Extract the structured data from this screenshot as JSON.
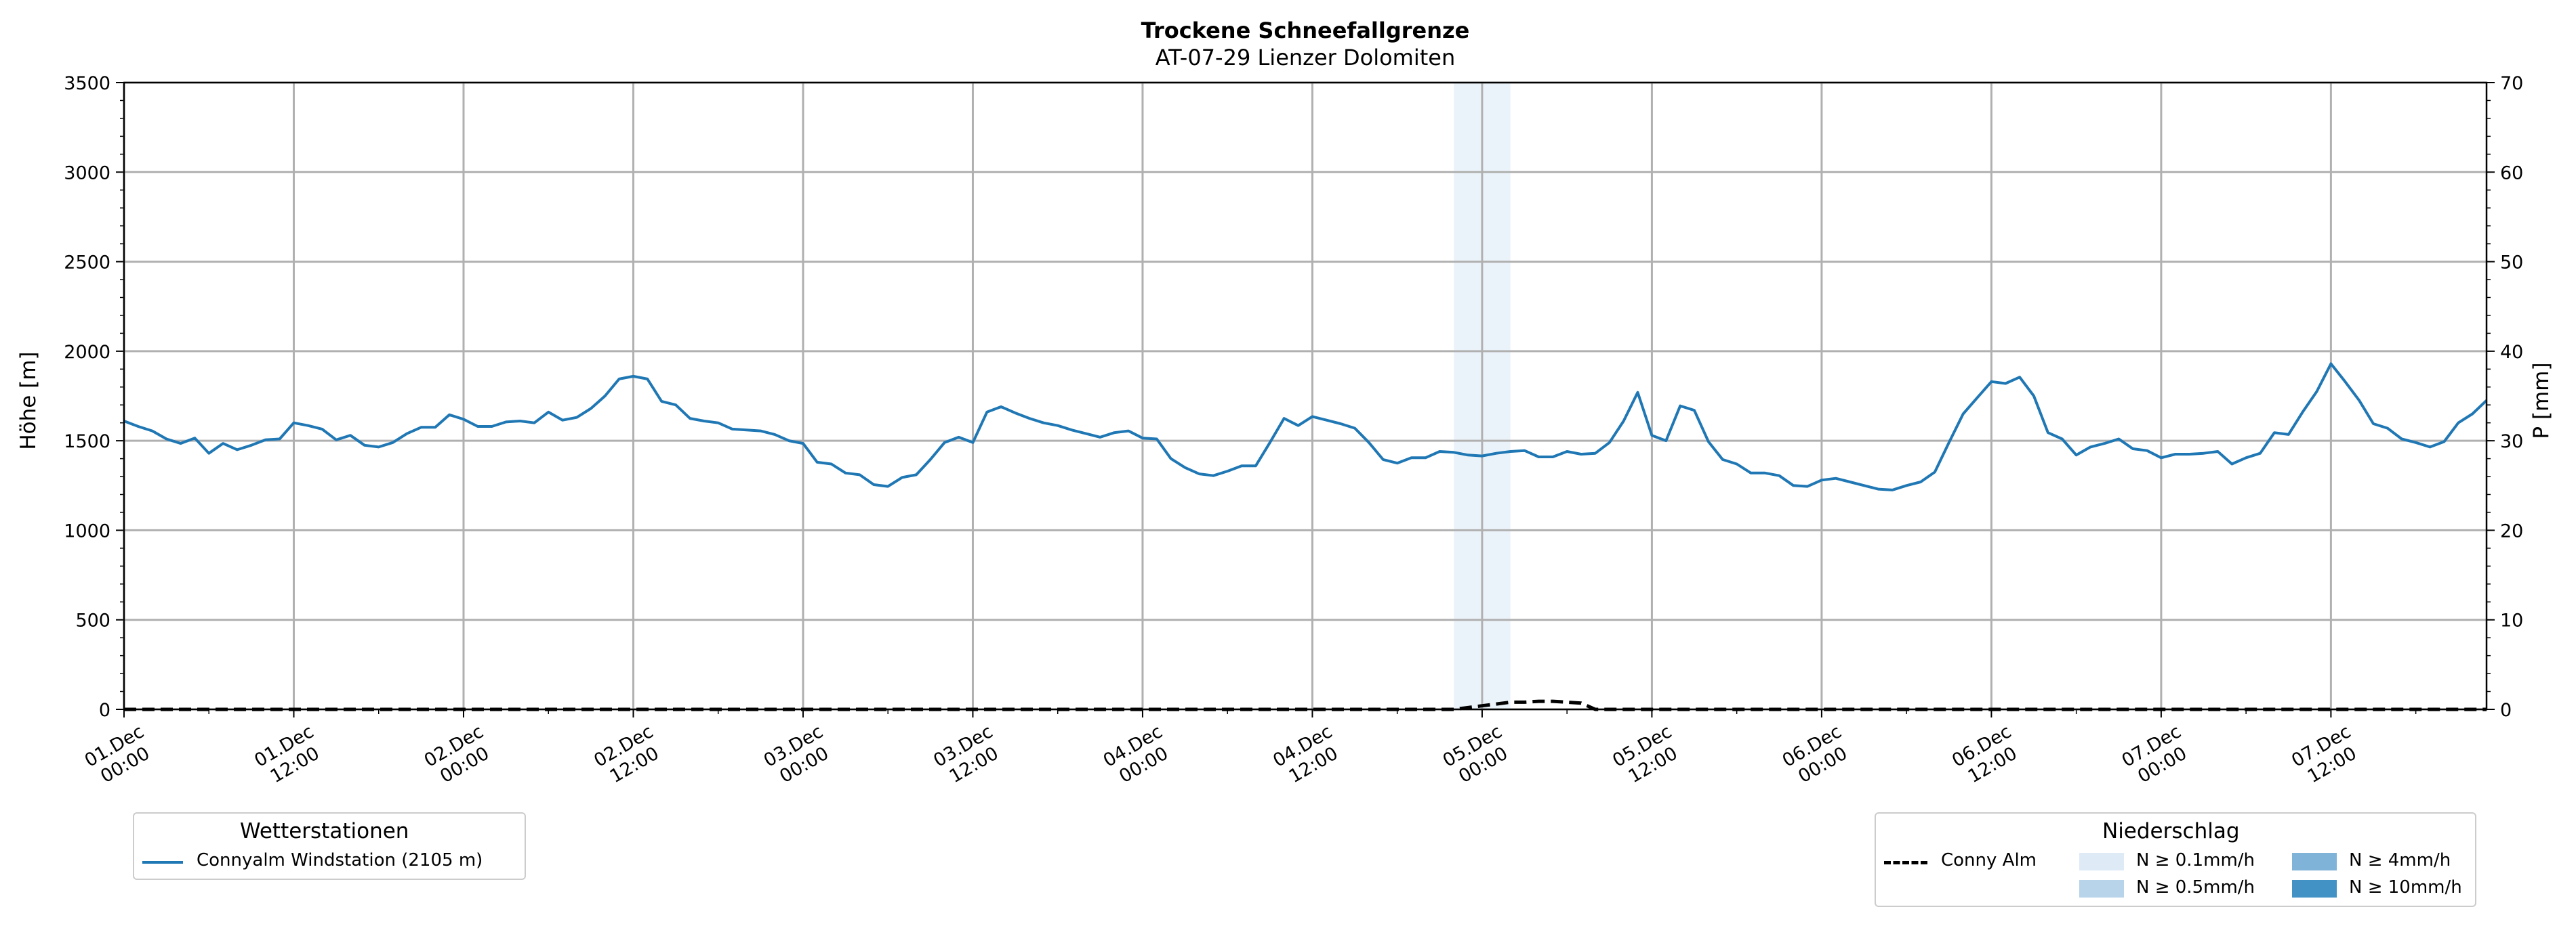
{
  "chart_data": {
    "type": "line",
    "title": "Trockene Schneefallgrenze",
    "subtitle": "AT-07-29 Lienzer Dolomiten",
    "ylabel": "Höhe [m]",
    "y2label": "P [mm]",
    "ylim": [
      0,
      3500
    ],
    "y2lim": [
      0,
      70
    ],
    "yticks": [
      "0",
      "500",
      "1000",
      "1500",
      "2000",
      "2500",
      "3000",
      "3500"
    ],
    "y2ticks": [
      "0",
      "10",
      "20",
      "30",
      "40",
      "50",
      "60",
      "70"
    ],
    "xlim_hours": [
      0,
      167
    ],
    "xtick_labels": [
      [
        "01.Dec",
        "00:00"
      ],
      [
        "01.Dec",
        "12:00"
      ],
      [
        "02.Dec",
        "00:00"
      ],
      [
        "02.Dec",
        "12:00"
      ],
      [
        "03.Dec",
        "00:00"
      ],
      [
        "03.Dec",
        "12:00"
      ],
      [
        "04.Dec",
        "00:00"
      ],
      [
        "04.Dec",
        "12:00"
      ],
      [
        "05.Dec",
        "00:00"
      ],
      [
        "05.Dec",
        "12:00"
      ],
      [
        "06.Dec",
        "00:00"
      ],
      [
        "06.Dec",
        "12:00"
      ],
      [
        "07.Dec",
        "00:00"
      ],
      [
        "07.Dec",
        "12:00"
      ]
    ],
    "grid": true,
    "series": [
      {
        "name": "Connyalm Windstation (2105 m)",
        "color": "#1f77b4",
        "axis": "left",
        "x_hours": [
          0,
          1,
          2,
          3,
          4,
          5,
          6,
          7,
          8,
          9,
          10,
          11,
          12,
          13,
          14,
          15,
          16,
          17,
          18,
          19,
          20,
          21,
          22,
          23,
          24,
          25,
          26,
          27,
          28,
          29,
          30,
          31,
          32,
          33,
          34,
          35,
          36,
          37,
          38,
          39,
          40,
          41,
          42,
          43,
          44,
          45,
          46,
          47,
          48,
          49,
          50,
          51,
          52,
          53,
          54,
          55,
          56,
          57,
          58,
          59,
          60,
          61,
          62,
          63,
          64,
          65,
          66,
          67,
          68,
          69,
          70,
          71,
          72,
          73,
          74,
          75,
          76,
          77,
          78,
          79,
          80,
          81,
          82,
          83,
          84,
          85,
          86,
          87,
          88,
          89,
          90,
          91,
          92,
          93,
          94,
          95,
          96,
          97,
          98,
          99,
          100,
          101,
          102,
          103,
          104,
          105,
          106,
          107,
          108,
          109,
          110,
          111,
          112,
          113,
          114,
          115,
          116,
          117,
          118,
          119,
          120,
          121,
          122,
          123,
          124,
          125,
          126,
          127,
          128,
          129,
          130,
          131,
          132,
          133,
          134,
          135,
          136,
          137,
          138,
          139,
          140,
          141,
          142,
          143,
          144,
          145,
          146,
          147,
          148,
          149,
          150,
          151,
          152,
          153,
          154,
          155,
          156,
          157,
          158,
          159,
          160,
          161,
          162,
          163,
          164,
          165,
          166,
          167
        ],
        "values": [
          1610,
          1580,
          1555,
          1510,
          1485,
          1515,
          1430,
          1485,
          1450,
          1475,
          1505,
          1510,
          1600,
          1585,
          1565,
          1505,
          1530,
          1475,
          1465,
          1490,
          1540,
          1575,
          1575,
          1645,
          1620,
          1580,
          1580,
          1605,
          1610,
          1600,
          1660,
          1615,
          1630,
          1680,
          1750,
          1845,
          1860,
          1845,
          1720,
          1700,
          1625,
          1610,
          1600,
          1565,
          1560,
          1555,
          1535,
          1500,
          1485,
          1380,
          1370,
          1320,
          1310,
          1255,
          1245,
          1295,
          1310,
          1395,
          1490,
          1520,
          1490,
          1660,
          1690,
          1655,
          1625,
          1600,
          1585,
          1560,
          1540,
          1520,
          1545,
          1555,
          1515,
          1510,
          1400,
          1350,
          1315,
          1305,
          1330,
          1360,
          1360,
          1490,
          1625,
          1585,
          1635,
          1615,
          1595,
          1570,
          1490,
          1395,
          1375,
          1405,
          1405,
          1440,
          1435,
          1420,
          1415,
          1430,
          1440,
          1445,
          1410,
          1410,
          1440,
          1425,
          1430,
          1490,
          1610,
          1770,
          1530,
          1500,
          1695,
          1670,
          1495,
          1395,
          1370,
          1320,
          1320,
          1305,
          1250,
          1245,
          1280,
          1290,
          1270,
          1250,
          1230,
          1225,
          1250,
          1270,
          1325,
          1490,
          1650,
          1740,
          1830,
          1820,
          1855,
          1750,
          1545,
          1510,
          1420,
          1465,
          1485,
          1510,
          1455,
          1445,
          1405,
          1425,
          1425,
          1430,
          1440,
          1370,
          1405,
          1430,
          1545,
          1535,
          1660,
          1775,
          1930,
          1830,
          1725,
          1595,
          1570,
          1510,
          1490,
          1465,
          1495,
          1600,
          1650,
          1725
        ]
      },
      {
        "name": "Conny Alm",
        "color": "#000000",
        "axis": "right",
        "dashed": true,
        "x_hours": [
          0,
          94,
          95,
          96,
          97,
          98,
          99,
          100,
          101,
          102,
          103,
          104,
          105,
          167
        ],
        "values": [
          0,
          0,
          0.2,
          0.4,
          0.6,
          0.8,
          0.8,
          0.9,
          0.9,
          0.8,
          0.7,
          0,
          0,
          0
        ]
      }
    ],
    "highlight_bands": [
      {
        "category": "N ≥ 0.1mm/h",
        "x_start_hours": 94,
        "x_end_hours": 98,
        "color": "#deebf7"
      }
    ]
  },
  "legend_stations": {
    "title": "Wetterstationen",
    "items": [
      {
        "label": "Connyalm Windstation (2105 m)",
        "color": "#1f77b4"
      }
    ]
  },
  "legend_precip": {
    "title": "Niederschlag",
    "line_label": "Conny Alm",
    "categories": [
      {
        "label": "N ≥ 0.1mm/h",
        "color": "#deebf7"
      },
      {
        "label": "N ≥ 0.5mm/h",
        "color": "#b7d4ea"
      },
      {
        "label": "N ≥ 4mm/h",
        "color": "#7fb3d8"
      },
      {
        "label": "N ≥ 10mm/h",
        "color": "#4292c6"
      }
    ]
  }
}
